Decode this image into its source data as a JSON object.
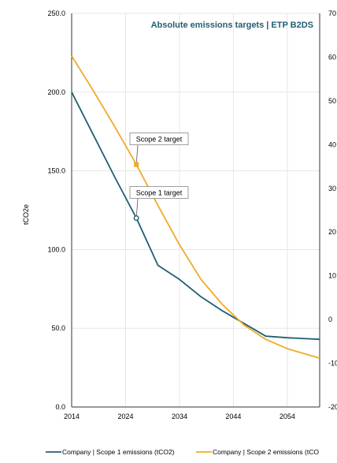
{
  "chart_data": {
    "type": "line",
    "title": "Absolute emissions targets | ETP B2DS",
    "ylabel": "tCO2e",
    "xlim": [
      2014,
      2060
    ],
    "ylim": [
      0,
      250
    ],
    "y2lim": [
      -200,
      700
    ],
    "x_ticks": [
      "2014",
      "2024",
      "2034",
      "2044",
      "2054"
    ],
    "y_ticks": [
      "0.0",
      "50.0",
      "100.0",
      "150.0",
      "200.0",
      "250.0"
    ],
    "y2_ticks": [
      "-20",
      "-10",
      "0",
      "10",
      "20",
      "30",
      "40",
      "50",
      "60",
      "70"
    ],
    "grid": true,
    "legend_position": "bottom",
    "series": [
      {
        "name": "Company | Scope 1 emissions (tCO2)",
        "color": "#1f5f73",
        "x": [
          2014,
          2018,
          2022,
          2026,
          2030,
          2034,
          2038,
          2042,
          2046,
          2050,
          2054,
          2060
        ],
        "y": [
          200,
          173,
          146,
          120,
          90,
          81,
          70,
          61,
          53,
          45,
          44,
          43
        ]
      },
      {
        "name": "Company | Scope 2 emissions (tCO",
        "color": "#f0aa27",
        "x": [
          2014,
          2018,
          2022,
          2026,
          2030,
          2034,
          2038,
          2042,
          2046,
          2050,
          2054,
          2060
        ],
        "y": [
          223,
          201,
          178,
          154,
          128,
          103,
          81,
          65,
          52,
          43,
          37,
          31
        ]
      }
    ],
    "annotations": [
      {
        "label": "Scope 2 target",
        "series": 1,
        "x": 2026,
        "y": 154
      },
      {
        "label": "Scope 1 target",
        "series": 0,
        "x": 2026,
        "y": 120
      }
    ]
  },
  "colors": {
    "title": "#1f5f73",
    "grid": "#e6e6e6",
    "axis": "#333333"
  }
}
